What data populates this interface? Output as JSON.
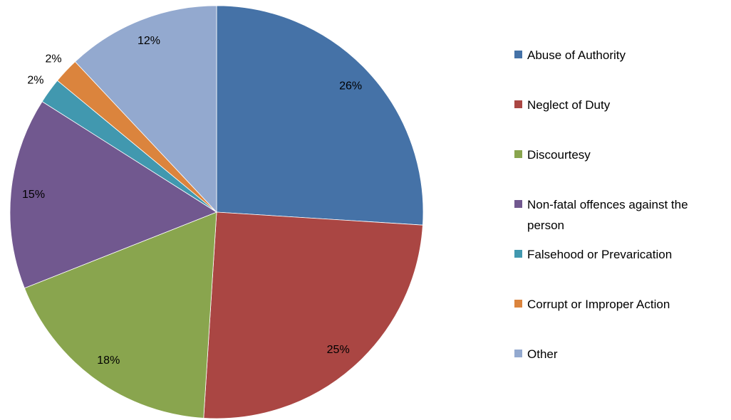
{
  "chart_data": {
    "type": "pie",
    "categories": [
      "Abuse of Authority",
      "Neglect of Duty",
      "Discourtesy",
      "Non-fatal offences against the person",
      "Falsehood or Prevarication",
      "Corrupt or Improper Action",
      "Other"
    ],
    "values": [
      26,
      25,
      18,
      15,
      2,
      2,
      12
    ],
    "value_labels": [
      "26%",
      "25%",
      "18%",
      "15%",
      "2%",
      "2%",
      "12%"
    ],
    "colors": [
      "#4572a7",
      "#aa4643",
      "#89a54e",
      "#71588f",
      "#4198af",
      "#db843d",
      "#93a9cf"
    ],
    "legend": "right"
  }
}
